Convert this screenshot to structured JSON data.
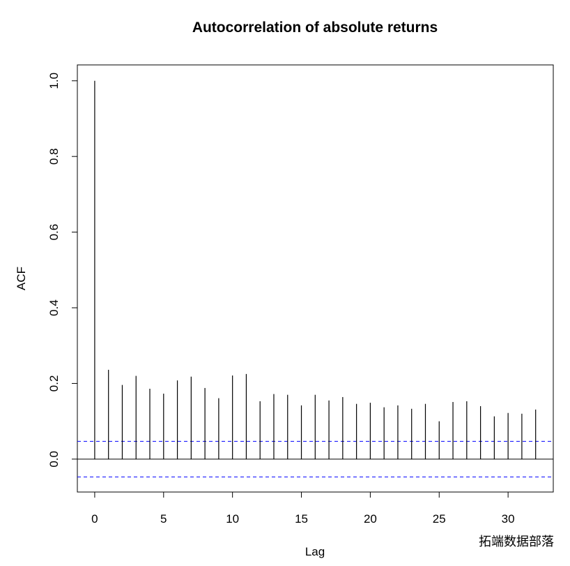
{
  "chart_data": {
    "type": "acf",
    "title": "Autocorrelation of absolute returns",
    "x_label": "Lag",
    "y_label": "ACF",
    "x": [
      0,
      1,
      2,
      3,
      4,
      5,
      6,
      7,
      8,
      9,
      10,
      11,
      12,
      13,
      14,
      15,
      16,
      17,
      18,
      19,
      20,
      21,
      22,
      23,
      24,
      25,
      26,
      27,
      28,
      29,
      30,
      31,
      32
    ],
    "values": [
      1.0,
      0.236,
      0.196,
      0.22,
      0.186,
      0.173,
      0.208,
      0.218,
      0.188,
      0.161,
      0.221,
      0.225,
      0.153,
      0.172,
      0.17,
      0.142,
      0.17,
      0.155,
      0.164,
      0.146,
      0.149,
      0.137,
      0.142,
      0.133,
      0.146,
      0.1,
      0.151,
      0.153,
      0.14,
      0.113,
      0.122,
      0.12,
      0.131
    ],
    "color": "#000000",
    "confidence_bounds": [
      0.047,
      -0.047
    ],
    "confidence_color": "#0000ff",
    "xlim": [
      -1.26,
      33.28
    ],
    "ylim": [
      -0.087,
      1.042
    ],
    "xticks": [
      0,
      5,
      10,
      15,
      20,
      25,
      30
    ],
    "yticks": [
      {
        "value": 0,
        "label": "0.0"
      },
      0.2,
      0.4,
      0.6,
      0.8,
      {
        "value": 1,
        "label": "1.0"
      }
    ],
    "watermark": "拓端数据部落"
  }
}
